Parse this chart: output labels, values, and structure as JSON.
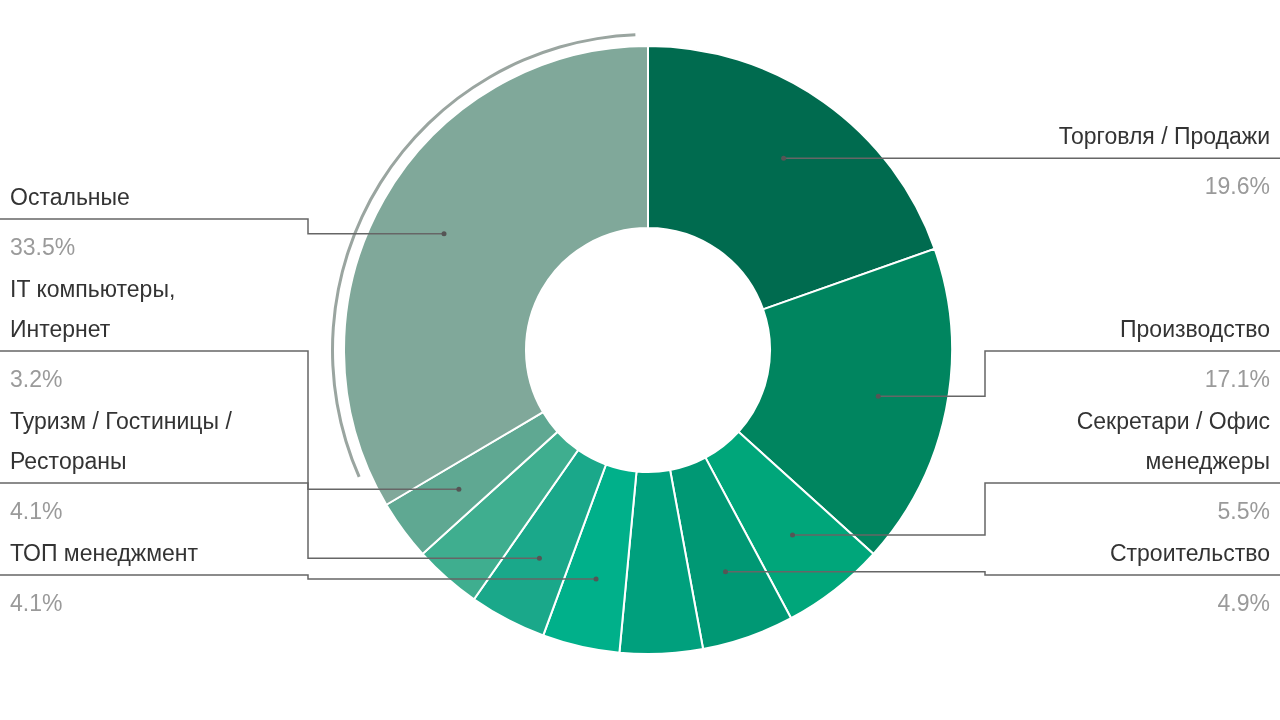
{
  "chart_data": {
    "type": "donut",
    "categories": [
      "Торговля / Продажи",
      "Производство",
      "Секретари / Офис менеджеры",
      "Строительство",
      null,
      "ТОП менеджмент",
      "Туризм / Гостиницы / Рестораны",
      null,
      "IT компьютеры, Интернет",
      "Остальные"
    ],
    "values": [
      19.6,
      17.1,
      5.5,
      4.9,
      4.4,
      4.1,
      4.1,
      3.6,
      3.2,
      33.5
    ],
    "value_labels": [
      "19.6%",
      "17.1%",
      "5.5%",
      "4.9%",
      null,
      "4.1%",
      "4.1%",
      null,
      "3.2%",
      "33.5%"
    ],
    "colors": [
      "#006b4f",
      "#00855f",
      "#00a67a",
      "#009874",
      "#00a07d",
      "#00b08a",
      "#1aa88a",
      "#3fae8f",
      "#5fa892",
      "#80a89a"
    ]
  }
}
